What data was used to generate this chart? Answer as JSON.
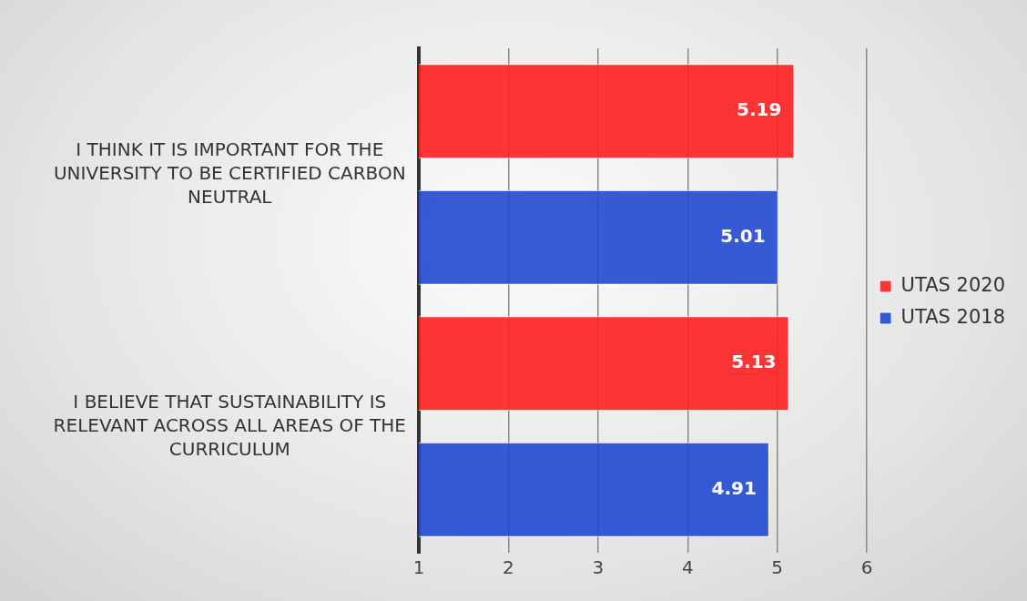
{
  "chart_data": {
    "type": "bar",
    "orientation": "horizontal",
    "categories": [
      "I THINK IT IS IMPORTANT FOR THE UNIVERSITY TO BE CERTIFIED CARBON NEUTRAL",
      "I BELIEVE THAT SUSTAINABILITY IS RELEVANT ACROSS ALL AREAS OF THE CURRICULUM"
    ],
    "series": [
      {
        "name": "UTAS 2020",
        "color": "#ff2020",
        "values": [
          5.19,
          5.13
        ]
      },
      {
        "name": "UTAS 2018",
        "color": "#2049d0",
        "values": [
          5.01,
          4.91
        ]
      }
    ],
    "xlim": [
      1,
      6
    ],
    "xticks": [
      1,
      2,
      3,
      4,
      5,
      6
    ],
    "grid": "x",
    "legend": "right",
    "data_labels": true
  }
}
